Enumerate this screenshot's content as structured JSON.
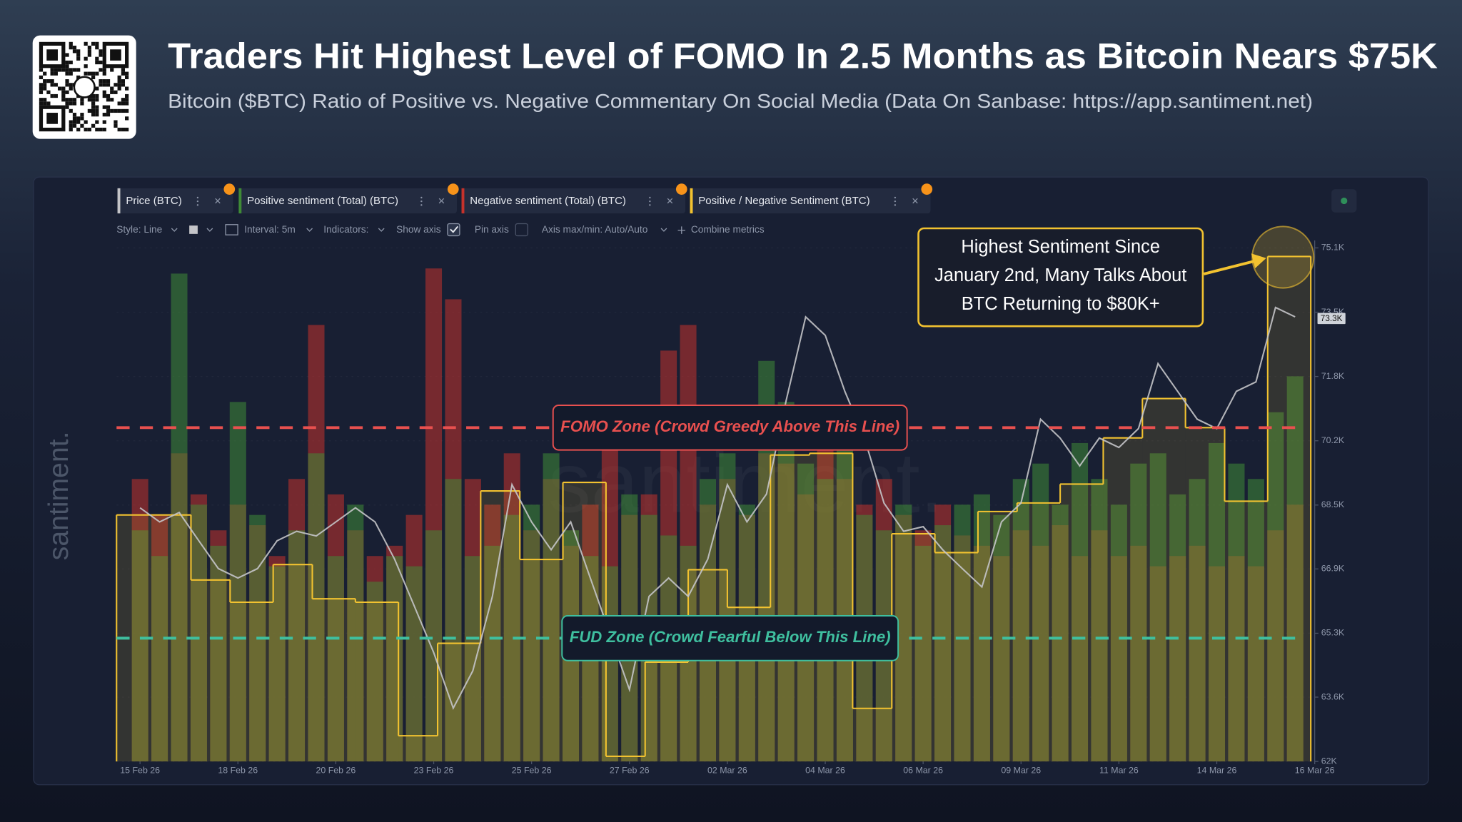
{
  "header": {
    "title": "Traders Hit Highest Level of FOMO In 2.5 Months as Bitcoin Nears $75K",
    "subtitle": "Bitcoin ($BTC) Ratio of Positive vs. Negative Commentary On Social Media (Data On Sanbase: https://app.santiment.net)"
  },
  "toolbar": [
    "Style: Line",
    "Interval: 5m",
    "Indicators:",
    "Show axis",
    "Pin axis",
    "Axis max/min: Auto/Auto",
    "Combine metrics"
  ],
  "watermark": "santiment.",
  "chart_data": {
    "type": "combo",
    "x": [
      0,
      0.5,
      1,
      1.5,
      2,
      2.5,
      3,
      3.5,
      4,
      4.5,
      5,
      5.5,
      6,
      6.5,
      7,
      7.5,
      8,
      8.5,
      9,
      9.5,
      10,
      10.5,
      11,
      11.5,
      12,
      12.5,
      13,
      13.5,
      14,
      14.5,
      15,
      15.5,
      16,
      16.5,
      17,
      17.5,
      18,
      18.5,
      19,
      19.5,
      20,
      20.5,
      21,
      21.5,
      22,
      22.5,
      23,
      23.5,
      24,
      24.5,
      25,
      25.5,
      26,
      26.5,
      27,
      27.5,
      28,
      28.5,
      29,
      29.5
    ],
    "xlim": [
      -0.6,
      30
    ],
    "xticks": [
      {
        "value": 0,
        "label": "15 Feb 26"
      },
      {
        "value": 2.5,
        "label": "18 Feb 26"
      },
      {
        "value": 5,
        "label": "20 Feb 26"
      },
      {
        "value": 7.5,
        "label": "23 Feb 26"
      },
      {
        "value": 10,
        "label": "25 Feb 26"
      },
      {
        "value": 12.5,
        "label": "27 Feb 26"
      },
      {
        "value": 15,
        "label": "02 Mar 26"
      },
      {
        "value": 17.5,
        "label": "04 Mar 26"
      },
      {
        "value": 20,
        "label": "06 Mar 26"
      },
      {
        "value": 22.5,
        "label": "09 Mar 26"
      },
      {
        "value": 25,
        "label": "11 Mar 26"
      },
      {
        "value": 27.5,
        "label": "14 Mar 26"
      },
      {
        "value": 30,
        "label": "16 Mar 26"
      }
    ],
    "ylim": [
      62000,
      75100
    ],
    "yticks": [
      {
        "value": 62000,
        "label": "62K"
      },
      {
        "value": 63640,
        "label": "63.6K"
      },
      {
        "value": 65270,
        "label": "65.3K"
      },
      {
        "value": 66910,
        "label": "66.9K"
      },
      {
        "value": 68540,
        "label": "68.5K"
      },
      {
        "value": 70180,
        "label": "70.2K"
      },
      {
        "value": 71820,
        "label": "71.8K"
      },
      {
        "value": 73460,
        "label": "73.5K"
      },
      {
        "value": 75100,
        "label": "75.1K"
      }
    ],
    "y2lim": [
      0,
      3
    ],
    "y3lim": [
      0,
      100
    ],
    "grid": true,
    "series": [
      {
        "name": "Price (BTC)",
        "type": "line",
        "axis": "y",
        "color": "#c4c4c8",
        "values": [
          68470,
          68110,
          68350,
          67630,
          66920,
          66680,
          66920,
          67630,
          67870,
          67750,
          68110,
          68470,
          68110,
          67160,
          65970,
          64780,
          63360,
          64310,
          66210,
          69060,
          68110,
          67400,
          68110,
          66680,
          65260,
          63830,
          66210,
          66680,
          66210,
          67160,
          69060,
          68110,
          68820,
          71200,
          73340,
          72870,
          71440,
          70250,
          68590,
          67870,
          67990,
          67400,
          66920,
          66450,
          68110,
          68590,
          70730,
          70250,
          69540,
          70250,
          70010,
          70490,
          72150,
          71440,
          70730,
          70490,
          71440,
          71680,
          73580,
          73340
        ]
      },
      {
        "name": "Positive sentiment (Total) (BTC)",
        "type": "bar",
        "axis": "y3",
        "color": "#3f8a36",
        "values": [
          45,
          40,
          95,
          50,
          42,
          70,
          48,
          38,
          45,
          60,
          40,
          50,
          35,
          40,
          38,
          45,
          55,
          40,
          42,
          48,
          50,
          60,
          45,
          40,
          38,
          52,
          48,
          44,
          42,
          55,
          60,
          50,
          78,
          70,
          58,
          55,
          62,
          48,
          45,
          50,
          42,
          46,
          50,
          52,
          48,
          55,
          58,
          50,
          62,
          55,
          50,
          58,
          60,
          52,
          55,
          62,
          58,
          55,
          68,
          75
        ]
      },
      {
        "name": "Negative sentiment (Total) (BTC)",
        "type": "bar",
        "axis": "y3",
        "color": "#c5322b",
        "values": [
          55,
          48,
          60,
          52,
          45,
          50,
          46,
          40,
          55,
          85,
          52,
          45,
          40,
          42,
          48,
          96,
          90,
          55,
          50,
          60,
          45,
          55,
          42,
          50,
          62,
          48,
          52,
          80,
          85,
          50,
          55,
          48,
          60,
          58,
          52,
          65,
          55,
          50,
          55,
          48,
          45,
          50,
          44,
          42,
          40,
          45,
          42,
          46,
          40,
          45,
          40,
          42,
          38,
          40,
          42,
          38,
          40,
          38,
          45,
          50
        ]
      },
      {
        "name": "Positive / Negative Sentiment (BTC)",
        "type": "step",
        "axis": "y2",
        "color": "#f2c230",
        "x": [
          -0.6,
          1.3,
          2.3,
          3.4,
          4.4,
          5.5,
          6.6,
          7.6,
          8.7,
          9.7,
          10.8,
          11.9,
          12.9,
          14.0,
          15.0,
          16.1,
          17.1,
          18.2,
          19.2,
          20.3,
          21.4,
          22.4,
          23.5,
          24.6,
          25.6,
          26.7,
          27.7,
          28.8
        ],
        "values": [
          1.44,
          1.06,
          0.93,
          1.15,
          0.95,
          0.93,
          0.15,
          0.69,
          1.58,
          1.18,
          1.63,
          0.03,
          0.58,
          1.12,
          0.9,
          1.79,
          1.8,
          0.31,
          1.33,
          1.22,
          1.46,
          1.51,
          1.62,
          1.89,
          2.12,
          1.95,
          1.52,
          2.95
        ]
      }
    ],
    "reference_lines": [
      {
        "value": 1.95,
        "axis": "y2",
        "label": "FOMO Zone (Crowd Greedy Above This Line)",
        "color": "#e8504f"
      },
      {
        "value": 0.72,
        "axis": "y2",
        "label": "FUD Zone (Crowd Fearful Below This Line)",
        "color": "#3fbf9f"
      }
    ],
    "last_price": {
      "value": 73300,
      "label": "73.3K"
    },
    "annotation": {
      "lines": [
        "Highest Sentiment Since",
        "January 2nd, Many Talks About",
        "BTC Returning to $80K+"
      ],
      "color": "#f2c230"
    }
  }
}
